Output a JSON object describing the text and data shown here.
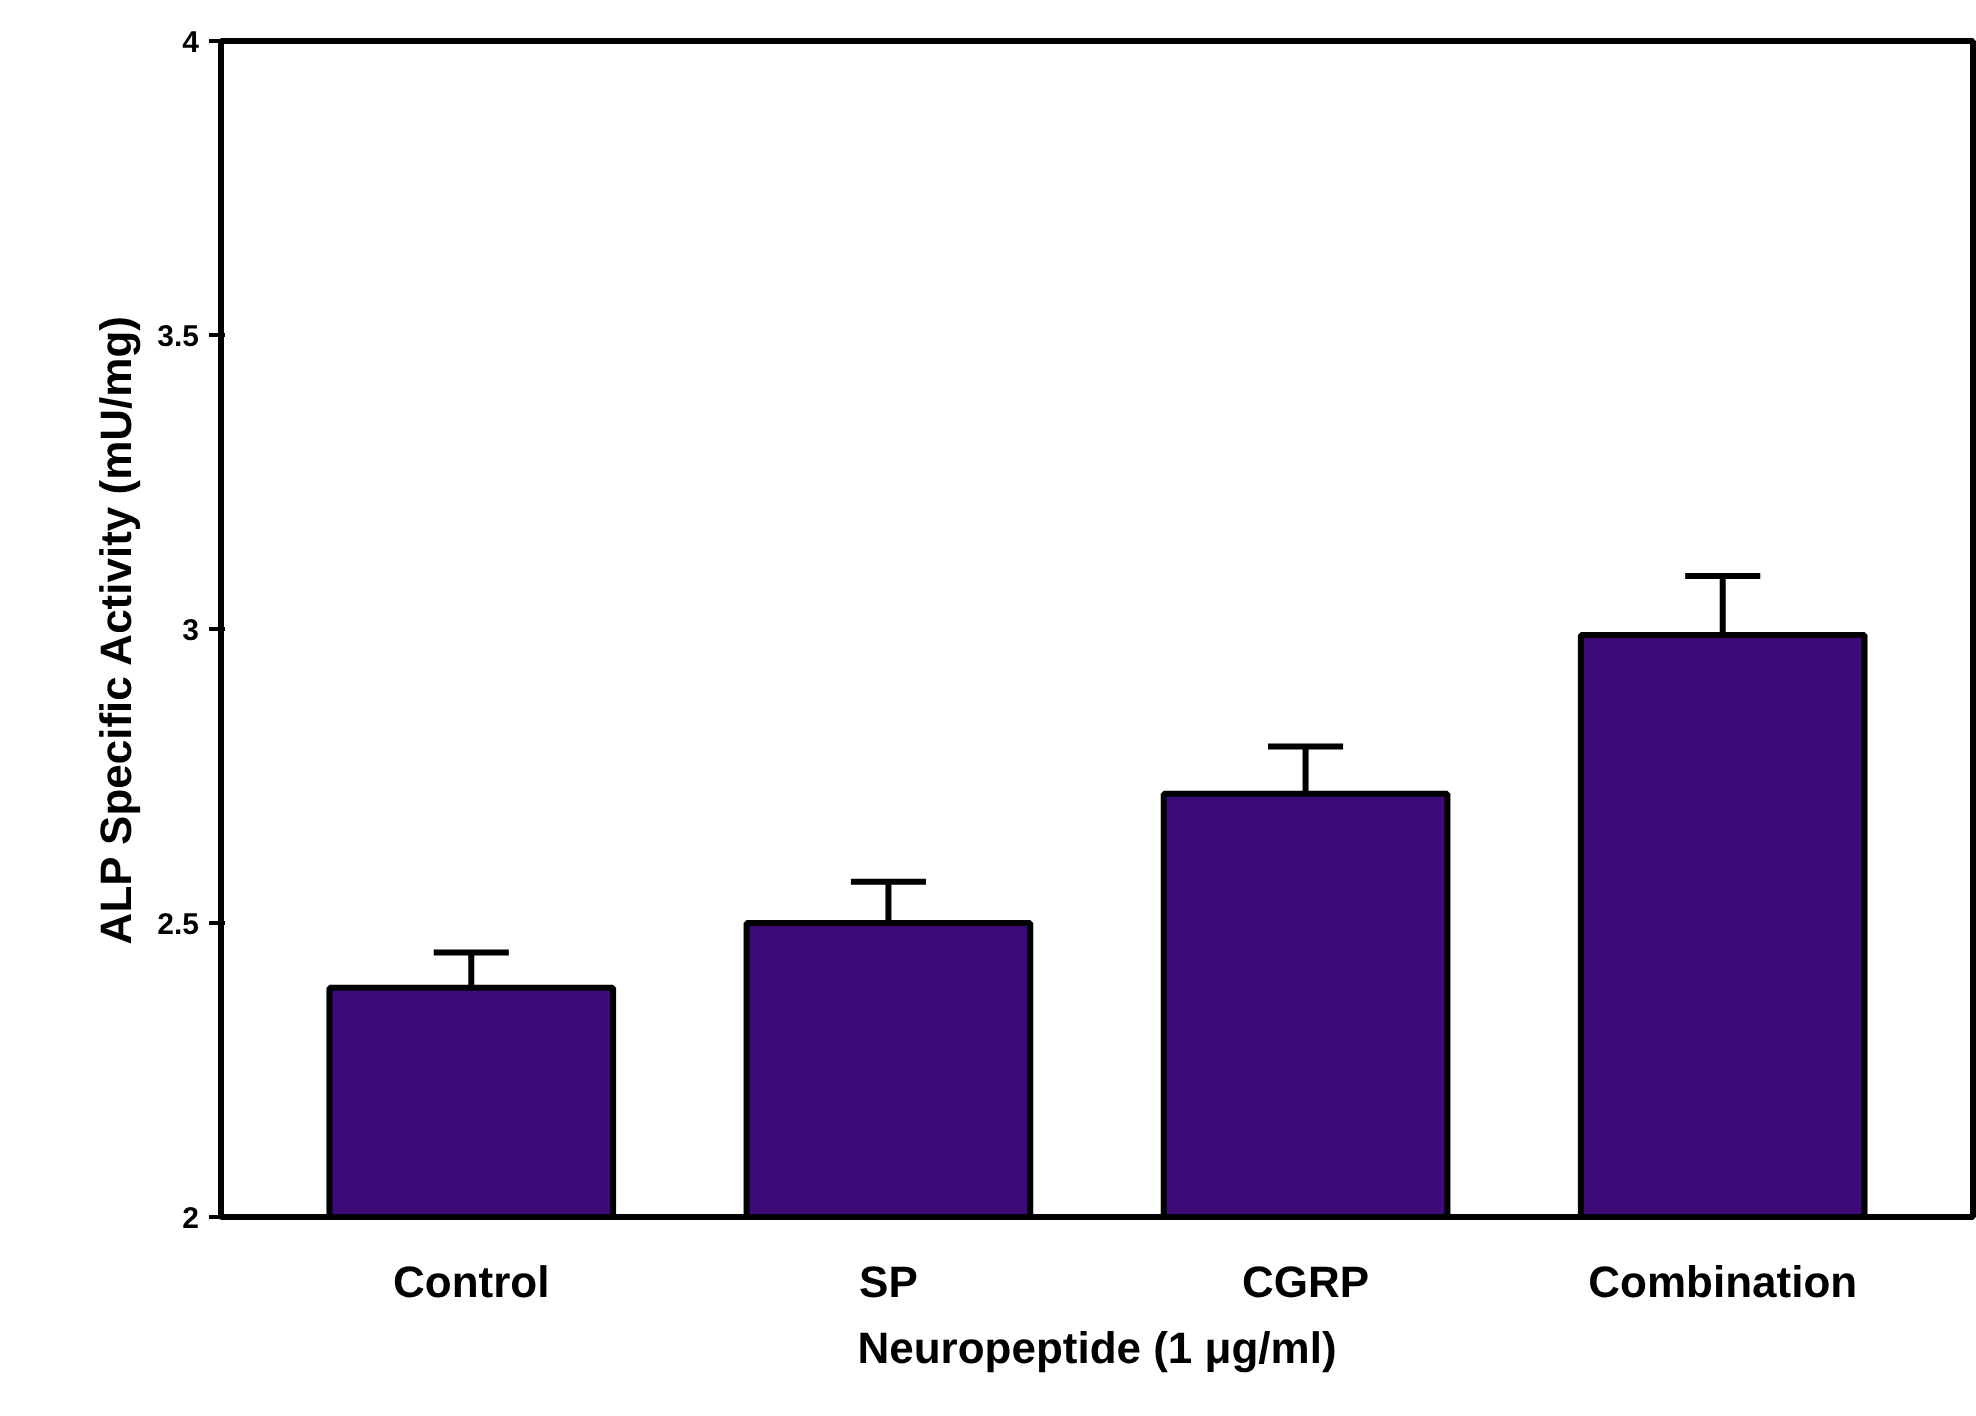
{
  "chart_data": {
    "type": "bar",
    "xlabel": "Neuropeptide (1 μg/ml)",
    "ylabel": "ALP Specific Activity (mU/mg)",
    "categories": [
      "Control",
      "SP",
      "CGRP",
      "Combination"
    ],
    "values": [
      2.39,
      2.5,
      2.72,
      2.99
    ],
    "errors": [
      [
        2.39,
        2.45
      ],
      [
        2.5,
        2.57
      ],
      [
        2.72,
        2.8
      ],
      [
        2.99,
        3.09
      ]
    ],
    "color": "#3d0a7a",
    "ylim": [
      2,
      4
    ],
    "yticks": [
      2,
      2.5,
      3,
      3.5,
      4
    ],
    "grid": false
  }
}
